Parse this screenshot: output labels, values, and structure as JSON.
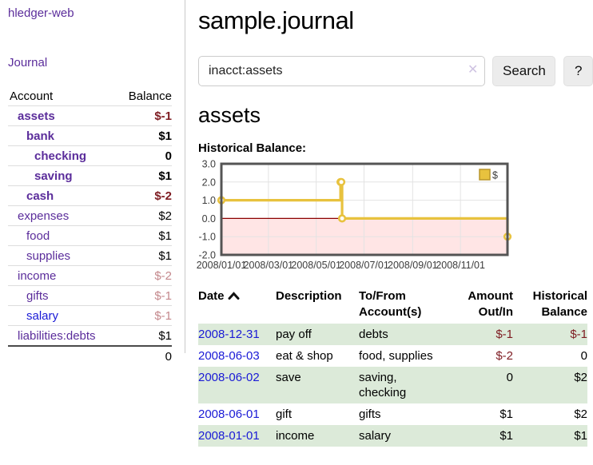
{
  "sidebar": {
    "app_title": "hledger-web",
    "journal_label": "Journal",
    "accounts_table": {
      "headers": {
        "account": "Account",
        "balance": "Balance"
      },
      "rows": [
        {
          "name": "assets",
          "balance": "$-1"
        },
        {
          "name": "bank",
          "balance": "$1"
        },
        {
          "name": "checking",
          "balance": "0"
        },
        {
          "name": "saving",
          "balance": "$1"
        },
        {
          "name": "cash",
          "balance": "$-2"
        },
        {
          "name": "expenses",
          "balance": "$2"
        },
        {
          "name": "food",
          "balance": "$1"
        },
        {
          "name": "supplies",
          "balance": "$1"
        },
        {
          "name": "income",
          "balance": "$-2"
        },
        {
          "name": "gifts",
          "balance": "$-1"
        },
        {
          "name": "salary",
          "balance": "$-1"
        },
        {
          "name": "liabilities:debts",
          "balance": "$1"
        }
      ],
      "total": "0"
    }
  },
  "header": {
    "title": "sample.journal"
  },
  "search": {
    "value": "inacct:assets",
    "clear_icon": "✕",
    "button_label": "Search",
    "help_label": "?"
  },
  "account_page": {
    "heading": "assets",
    "chart_label": "Historical Balance:"
  },
  "chart_data": {
    "type": "line",
    "step": true,
    "title": "Historical Balance:",
    "series": [
      {
        "name": "$",
        "color": "#e8c23e",
        "points": [
          [
            "2008-01-01",
            1
          ],
          [
            "2008-06-01",
            2
          ],
          [
            "2008-06-02",
            2
          ],
          [
            "2008-06-03",
            0
          ],
          [
            "2008-12-31",
            -1
          ]
        ]
      }
    ],
    "xlim": [
      "2008-01-01",
      "2008-12-31"
    ],
    "ylim": [
      -2,
      3
    ],
    "y_ticks": [
      3,
      2,
      1,
      0,
      -1,
      -2
    ],
    "y_tick_labels": [
      "3.0",
      "2.0",
      "1.0",
      "0.0",
      "-1.0",
      "-2.0"
    ],
    "x_ticks": [
      "2008-01-01",
      "2008-03-01",
      "2008-05-01",
      "2008-07-01",
      "2008-09-01",
      "2008-11-01"
    ],
    "x_tick_labels": [
      "2008/01/01",
      "2008/03/01",
      "2008/05/01",
      "2008/07/01",
      "2008/09/01",
      "2008/11/01"
    ],
    "legend": {
      "label": "$",
      "position": "top-right"
    },
    "grid": true,
    "marker": "open-circle",
    "colors": {
      "line": "#e8c23e",
      "legend_border": "#b9952c",
      "negative_region": "rgba(255,0,0,0.10)",
      "zero_line": "#8b0000",
      "plot_border": "#545454",
      "grid": "#e3e3e3"
    }
  },
  "register": {
    "headers": {
      "date": "Date",
      "description": "Description",
      "accounts": "To/From Account(s)",
      "amount": "Amount Out/In",
      "balance": "Historical Balance"
    },
    "rows": [
      {
        "date": "2008-12-31",
        "description": "pay off",
        "accounts": "debts",
        "amount": "$-1",
        "balance": "$-1"
      },
      {
        "date": "2008-06-03",
        "description": "eat & shop",
        "accounts": "food, supplies",
        "amount": "$-2",
        "balance": "0"
      },
      {
        "date": "2008-06-02",
        "description": "save",
        "accounts": "saving, checking",
        "amount": "0",
        "balance": "$2"
      },
      {
        "date": "2008-06-01",
        "description": "gift",
        "accounts": "gifts",
        "amount": "$1",
        "balance": "$2"
      },
      {
        "date": "2008-01-01",
        "description": "income",
        "accounts": "salary",
        "amount": "$1",
        "balance": "$1"
      }
    ]
  },
  "colors": {
    "link_purple": "#5b2d9b",
    "link_blue": "#1a1ad6",
    "negative_strong": "#7e1c22",
    "negative_soft": "#c4888c",
    "row_stripe_green": "#dcead9",
    "button_bg": "#ececec"
  }
}
